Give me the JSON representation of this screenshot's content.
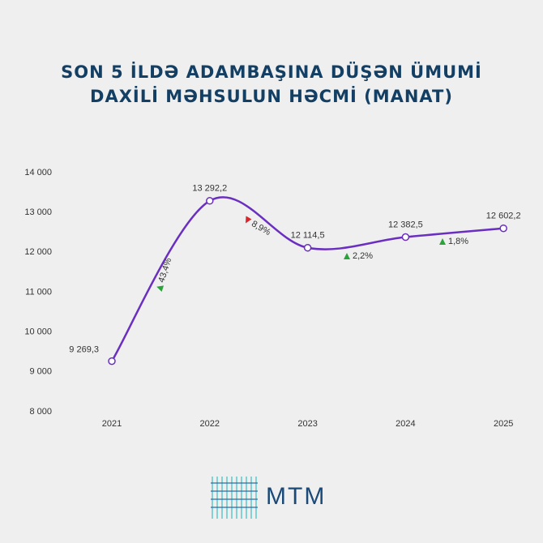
{
  "chart_data": {
    "type": "line",
    "title": "SON 5 İLDƏ ADAMBAŞINA DÜŞƏN ÜMUMİ DAXİLİ MƏHSULUN HƏCMİ (MANAT)",
    "categories": [
      "2021",
      "2022",
      "2023",
      "2024",
      "2025"
    ],
    "values": [
      9269.3,
      13292.2,
      12114.5,
      12382.5,
      12602.2
    ],
    "value_labels": [
      "9 269,3",
      "13 292,2",
      "12 114,5",
      "12 382,5",
      "12 602,2"
    ],
    "color": "#6a2fc0",
    "ylim": [
      8000,
      14000
    ],
    "yticks": [
      {
        "value": 8000,
        "label": "8 000"
      },
      {
        "value": 9000,
        "label": "9 000"
      },
      {
        "value": 10000,
        "label": "10 000"
      },
      {
        "value": 11000,
        "label": "11 000"
      },
      {
        "value": 12000,
        "label": "12 000"
      },
      {
        "value": 13000,
        "label": "13 000"
      },
      {
        "value": 14000,
        "label": "14 000"
      }
    ],
    "grid": false,
    "changes": [
      {
        "label": "43,4%",
        "color": "#2aa33a"
      },
      {
        "label": "8,9%",
        "color": "#d9242b"
      },
      {
        "label": "2,2%",
        "color": "#2aa33a"
      },
      {
        "label": "1,8%",
        "color": "#2aa33a"
      }
    ]
  },
  "logo": "MTM"
}
